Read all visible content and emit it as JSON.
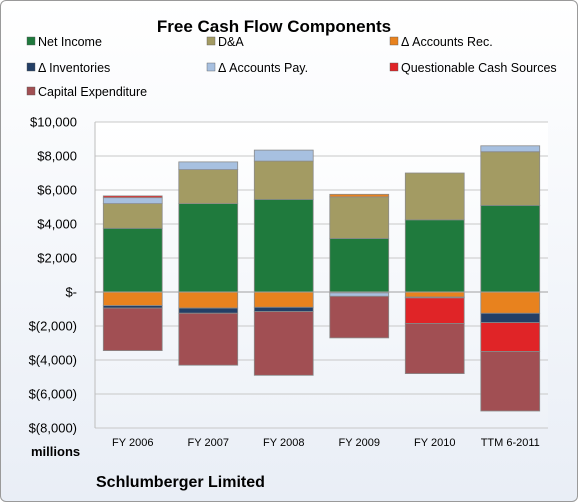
{
  "chart_data": {
    "type": "bar",
    "stacked": true,
    "title": "Free Cash Flow Components",
    "units_label": "millions",
    "company": "Schlumberger Limited",
    "categories": [
      "FY 2006",
      "FY 2007",
      "FY 2008",
      "FY 2009",
      "FY 2010",
      "TTM 6-2011"
    ],
    "ylim": [
      -8000,
      10000
    ],
    "yticks": [
      10000,
      8000,
      6000,
      4000,
      2000,
      0,
      -2000,
      -4000,
      -6000,
      -8000
    ],
    "ytick_labels": [
      "$10,000",
      "$8,000",
      "$6,000",
      "$4,000",
      "$2,000",
      "$-",
      "$(2,000)",
      "$(4,000)",
      "$(6,000)",
      "$(8,000)"
    ],
    "grid": true,
    "legend_position": "top",
    "series": [
      {
        "name": "Net Income",
        "color": "#1f7a3d",
        "values": [
          3750,
          5200,
          5450,
          3150,
          4250,
          5100
        ]
      },
      {
        "name": "D&A",
        "color": "#a39b63",
        "values": [
          1450,
          2000,
          2250,
          2450,
          2750,
          3150
        ]
      },
      {
        "name": "Δ Accounts Rec.",
        "color": "#e8821e",
        "values": [
          -800,
          -950,
          -900,
          150,
          -300,
          -1250
        ]
      },
      {
        "name": "Δ Inventories",
        "color": "#233f66",
        "values": [
          -150,
          -300,
          -250,
          -50,
          -50,
          -550
        ]
      },
      {
        "name": "Δ Accounts Pay.",
        "color": "#a7c0e0",
        "values": [
          350,
          450,
          650,
          -200,
          0,
          350
        ]
      },
      {
        "name": "Questionable Cash Sources",
        "color": "#e02427",
        "values": [
          100,
          0,
          0,
          0,
          -1500,
          -1700
        ]
      },
      {
        "name": "Capital Expenditure",
        "color": "#a14f53",
        "values": [
          -2500,
          -3050,
          -3750,
          -2450,
          -2950,
          -3500
        ]
      }
    ]
  }
}
